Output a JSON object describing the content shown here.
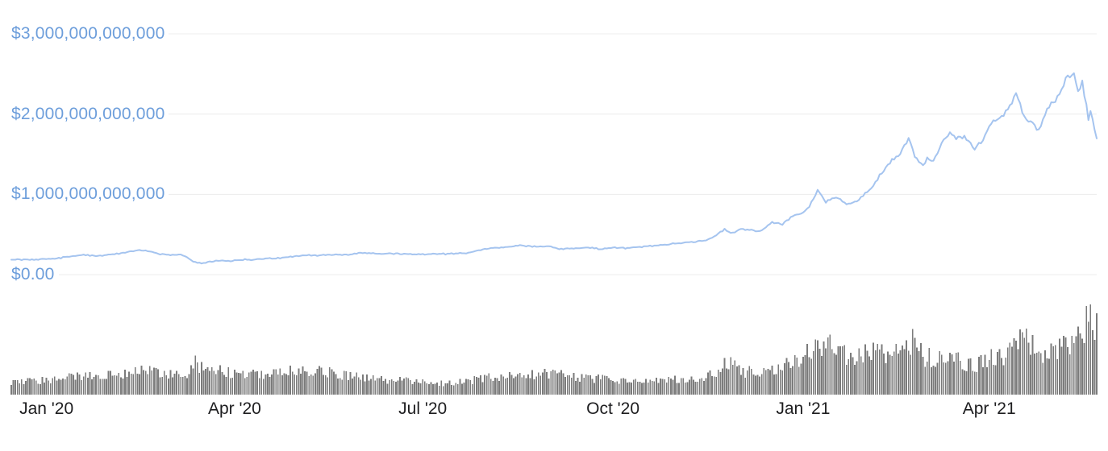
{
  "style": {
    "background": "#ffffff",
    "line_color": "#a5c4ef",
    "bar_color": "#7b7b7b",
    "grid_color": "#ececec",
    "y_label_color": "#6d9edb",
    "x_label_color": "#1d1d1f"
  },
  "chart_data": [
    {
      "type": "line",
      "name": "total-market-cap",
      "value_unit": "billion_usd",
      "ylim": [
        0,
        3000
      ],
      "grid": true,
      "legend": false,
      "x_range": {
        "start": "2019-12-15",
        "end": "2021-05-23"
      },
      "y_ticks": [
        {
          "value": 0,
          "label": "$0.00"
        },
        {
          "value": 1000,
          "label": "$1,000,000,000,000"
        },
        {
          "value": 2000,
          "label": "$2,000,000,000,000"
        },
        {
          "value": 3000,
          "label": "$3,000,000,000,000"
        }
      ],
      "x_ticks": [
        {
          "date": "2020-01-01",
          "label": "Jan '20"
        },
        {
          "date": "2020-04-01",
          "label": "Apr '20"
        },
        {
          "date": "2020-07-01",
          "label": "Jul '20"
        },
        {
          "date": "2020-10-01",
          "label": "Oct '20"
        },
        {
          "date": "2021-01-01",
          "label": "Jan '21"
        },
        {
          "date": "2021-04-01",
          "label": "Apr '21"
        }
      ],
      "interpolation": {
        "step_days": 1,
        "noise_rel": 0.024,
        "noise_abs": 12
      },
      "points": [
        [
          "2019-12-15",
          190
        ],
        [
          "2019-12-22",
          185
        ],
        [
          "2020-01-01",
          195
        ],
        [
          "2020-01-08",
          210
        ],
        [
          "2020-01-14",
          235
        ],
        [
          "2020-01-19",
          245
        ],
        [
          "2020-01-25",
          232
        ],
        [
          "2020-01-31",
          250
        ],
        [
          "2020-02-07",
          270
        ],
        [
          "2020-02-14",
          305
        ],
        [
          "2020-02-19",
          295
        ],
        [
          "2020-02-25",
          255
        ],
        [
          "2020-03-01",
          245
        ],
        [
          "2020-03-06",
          250
        ],
        [
          "2020-03-09",
          220
        ],
        [
          "2020-03-12",
          165
        ],
        [
          "2020-03-16",
          140
        ],
        [
          "2020-03-20",
          160
        ],
        [
          "2020-03-24",
          175
        ],
        [
          "2020-03-29",
          168
        ],
        [
          "2020-04-06",
          190
        ],
        [
          "2020-04-10",
          185
        ],
        [
          "2020-04-16",
          200
        ],
        [
          "2020-04-23",
          205
        ],
        [
          "2020-04-30",
          230
        ],
        [
          "2020-05-07",
          245
        ],
        [
          "2020-05-10",
          238
        ],
        [
          "2020-05-17",
          245
        ],
        [
          "2020-05-25",
          248
        ],
        [
          "2020-06-01",
          270
        ],
        [
          "2020-06-08",
          265
        ],
        [
          "2020-06-15",
          262
        ],
        [
          "2020-06-21",
          258
        ],
        [
          "2020-06-27",
          250
        ],
        [
          "2020-07-04",
          255
        ],
        [
          "2020-07-12",
          258
        ],
        [
          "2020-07-22",
          268
        ],
        [
          "2020-07-27",
          300
        ],
        [
          "2020-08-02",
          330
        ],
        [
          "2020-08-09",
          340
        ],
        [
          "2020-08-17",
          365
        ],
        [
          "2020-08-24",
          350
        ],
        [
          "2020-09-01",
          355
        ],
        [
          "2020-09-05",
          320
        ],
        [
          "2020-09-12",
          328
        ],
        [
          "2020-09-20",
          335
        ],
        [
          "2020-09-24",
          320
        ],
        [
          "2020-10-01",
          335
        ],
        [
          "2020-10-07",
          330
        ],
        [
          "2020-10-14",
          345
        ],
        [
          "2020-10-21",
          360
        ],
        [
          "2020-10-28",
          380
        ],
        [
          "2020-11-06",
          400
        ],
        [
          "2020-11-14",
          425
        ],
        [
          "2020-11-18",
          460
        ],
        [
          "2020-11-24",
          565
        ],
        [
          "2020-11-27",
          515
        ],
        [
          "2020-12-01",
          560
        ],
        [
          "2020-12-05",
          555
        ],
        [
          "2020-12-11",
          540
        ],
        [
          "2020-12-17",
          650
        ],
        [
          "2020-12-22",
          630
        ],
        [
          "2020-12-26",
          715
        ],
        [
          "2021-01-01",
          775
        ],
        [
          "2021-01-04",
          850
        ],
        [
          "2021-01-08",
          1050
        ],
        [
          "2021-01-12",
          905
        ],
        [
          "2021-01-16",
          960
        ],
        [
          "2021-01-20",
          920
        ],
        [
          "2021-01-22",
          870
        ],
        [
          "2021-01-26",
          905
        ],
        [
          "2021-01-29",
          955
        ],
        [
          "2021-02-03",
          1080
        ],
        [
          "2021-02-08",
          1270
        ],
        [
          "2021-02-13",
          1430
        ],
        [
          "2021-02-17",
          1500
        ],
        [
          "2021-02-21",
          1690
        ],
        [
          "2021-02-24",
          1480
        ],
        [
          "2021-02-28",
          1350
        ],
        [
          "2021-03-02",
          1450
        ],
        [
          "2021-03-05",
          1400
        ],
        [
          "2021-03-09",
          1650
        ],
        [
          "2021-03-13",
          1760
        ],
        [
          "2021-03-16",
          1690
        ],
        [
          "2021-03-20",
          1720
        ],
        [
          "2021-03-25",
          1560
        ],
        [
          "2021-03-29",
          1680
        ],
        [
          "2021-04-02",
          1900
        ],
        [
          "2021-04-07",
          1950
        ],
        [
          "2021-04-10",
          2050
        ],
        [
          "2021-04-14",
          2240
        ],
        [
          "2021-04-18",
          1980
        ],
        [
          "2021-04-21",
          1900
        ],
        [
          "2021-04-25",
          1800
        ],
        [
          "2021-04-29",
          2060
        ],
        [
          "2021-05-02",
          2150
        ],
        [
          "2021-05-04",
          2210
        ],
        [
          "2021-05-08",
          2430
        ],
        [
          "2021-05-12",
          2530
        ],
        [
          "2021-05-14",
          2280
        ],
        [
          "2021-05-16",
          2400
        ],
        [
          "2021-05-17",
          2250
        ],
        [
          "2021-05-19",
          1950
        ],
        [
          "2021-05-20",
          2060
        ],
        [
          "2021-05-21",
          1950
        ],
        [
          "2021-05-23",
          1700
        ]
      ]
    },
    {
      "type": "bar",
      "name": "24h-volume",
      "value_unit": "billion_usd",
      "ylim": [
        0,
        520
      ],
      "grid": false,
      "legend": false,
      "x_range": {
        "start": "2019-12-15",
        "end": "2021-05-23"
      },
      "interpolation": {
        "step_days": 1,
        "jitter_base": 0.72,
        "jitter_span": 0.56
      },
      "points": [
        [
          "2019-12-15",
          70
        ],
        [
          "2020-01-01",
          85
        ],
        [
          "2020-01-15",
          105
        ],
        [
          "2020-01-28",
          115
        ],
        [
          "2020-02-10",
          130
        ],
        [
          "2020-02-19",
          140
        ],
        [
          "2020-03-01",
          110
        ],
        [
          "2020-03-08",
          120
        ],
        [
          "2020-03-13",
          180
        ],
        [
          "2020-03-20",
          150
        ],
        [
          "2020-04-02",
          115
        ],
        [
          "2020-04-16",
          120
        ],
        [
          "2020-04-30",
          145
        ],
        [
          "2020-05-11",
          150
        ],
        [
          "2020-05-22",
          120
        ],
        [
          "2020-06-02",
          100
        ],
        [
          "2020-06-15",
          85
        ],
        [
          "2020-06-28",
          75
        ],
        [
          "2020-07-10",
          65
        ],
        [
          "2020-07-24",
          80
        ],
        [
          "2020-08-03",
          100
        ],
        [
          "2020-08-18",
          110
        ],
        [
          "2020-09-04",
          125
        ],
        [
          "2020-09-18",
          95
        ],
        [
          "2020-10-02",
          85
        ],
        [
          "2020-10-16",
          75
        ],
        [
          "2020-10-29",
          85
        ],
        [
          "2020-11-09",
          95
        ],
        [
          "2020-11-20",
          120
        ],
        [
          "2020-11-26",
          190
        ],
        [
          "2020-12-04",
          135
        ],
        [
          "2020-12-13",
          120
        ],
        [
          "2020-12-21",
          160
        ],
        [
          "2020-12-29",
          185
        ],
        [
          "2021-01-04",
          245
        ],
        [
          "2021-01-11",
          300
        ],
        [
          "2021-01-18",
          230
        ],
        [
          "2021-01-25",
          215
        ],
        [
          "2021-01-30",
          250
        ],
        [
          "2021-02-08",
          245
        ],
        [
          "2021-02-15",
          230
        ],
        [
          "2021-02-23",
          300
        ],
        [
          "2021-03-01",
          220
        ],
        [
          "2021-03-10",
          205
        ],
        [
          "2021-03-18",
          190
        ],
        [
          "2021-03-26",
          175
        ],
        [
          "2021-04-03",
          215
        ],
        [
          "2021-04-10",
          235
        ],
        [
          "2021-04-14",
          280
        ],
        [
          "2021-04-18",
          320
        ],
        [
          "2021-04-23",
          265
        ],
        [
          "2021-04-28",
          230
        ],
        [
          "2021-05-02",
          250
        ],
        [
          "2021-05-06",
          290
        ],
        [
          "2021-05-10",
          310
        ],
        [
          "2021-05-13",
          330
        ],
        [
          "2021-05-17",
          330
        ],
        [
          "2021-05-19",
          500
        ],
        [
          "2021-05-20",
          440
        ],
        [
          "2021-05-23",
          380
        ]
      ]
    }
  ]
}
